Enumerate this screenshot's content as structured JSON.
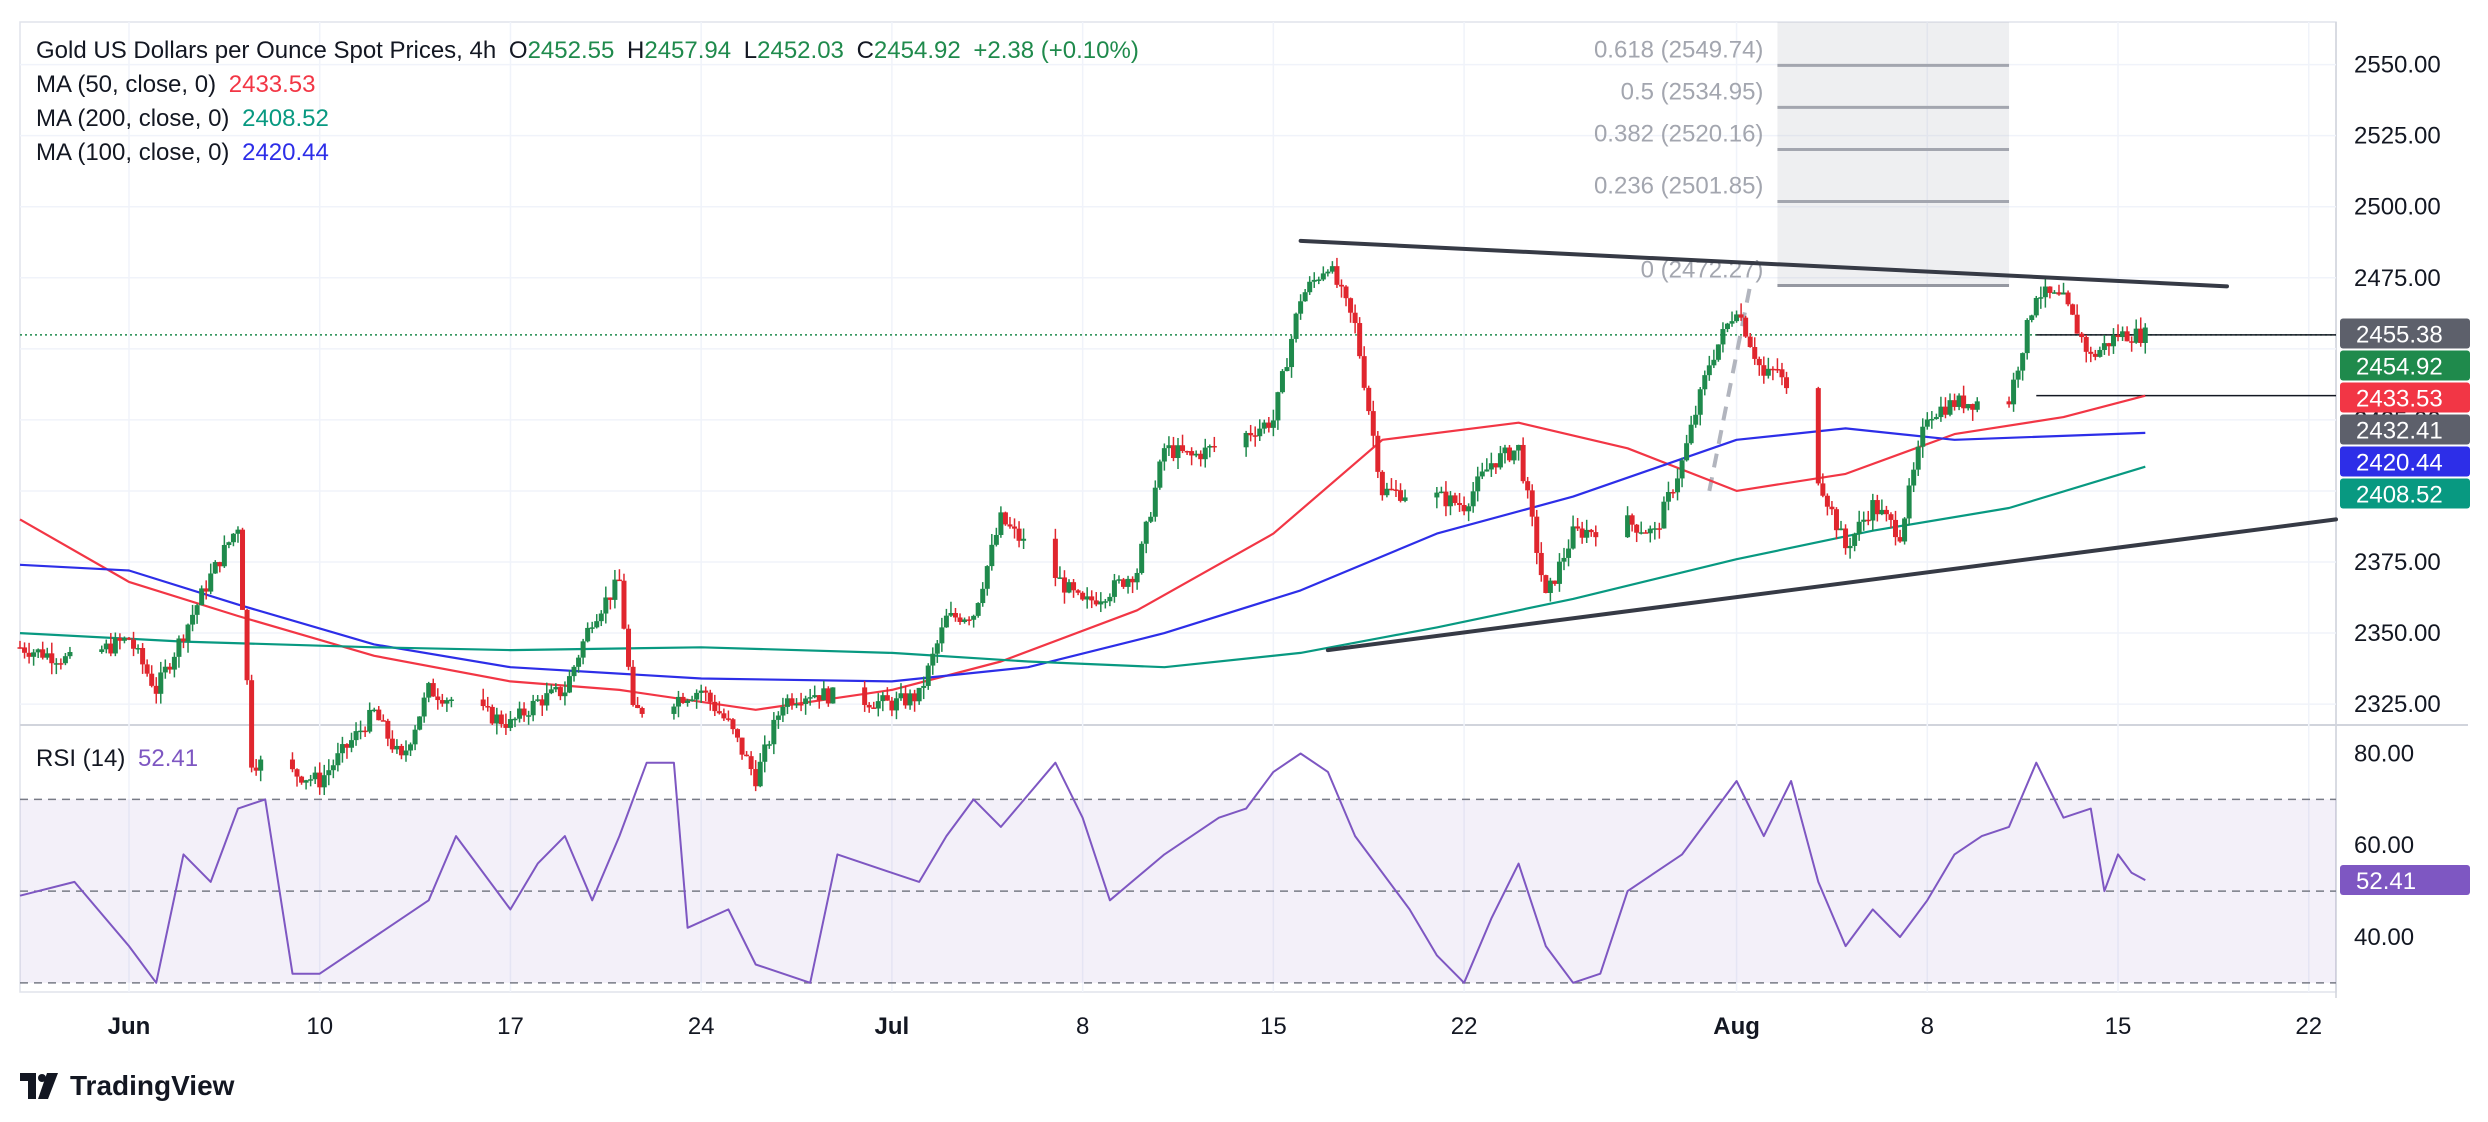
{
  "header": {
    "title": "Gold US Dollars per Ounce Spot Prices, 4h",
    "open_label": "O",
    "open": "2452.55",
    "high_label": "H",
    "high": "2457.94",
    "low_label": "L",
    "low": "2452.03",
    "close_label": "C",
    "close": "2454.92",
    "change": "+2.38 (+0.10%)"
  },
  "indicators": {
    "ma50": {
      "label": "MA (50, close, 0)",
      "value": "2433.53",
      "color": "#f23645"
    },
    "ma200": {
      "label": "MA (200, close, 0)",
      "value": "2408.52",
      "color": "#089981"
    },
    "ma100": {
      "label": "MA (100, close, 0)",
      "value": "2420.44",
      "color": "#2d2ee8"
    },
    "rsi": {
      "label": "RSI (14)",
      "value": "52.41",
      "color": "#7e57c2"
    }
  },
  "brand": "TradingView",
  "chart_data": [
    {
      "type": "candlestick",
      "title": "Gold US Dollars per Ounce Spot Prices, 4h",
      "x_tick_labels": [
        "Jun",
        "10",
        "17",
        "24",
        "Jul",
        "8",
        "15",
        "22",
        "Aug",
        "8",
        "15",
        "22"
      ],
      "x_tick_dates": [
        "2024-06-03",
        "2024-06-10",
        "2024-06-17",
        "2024-06-24",
        "2024-07-01",
        "2024-07-08",
        "2024-07-15",
        "2024-07-22",
        "2024-08-01",
        "2024-08-08",
        "2024-08-15",
        "2024-08-22"
      ],
      "xlim": [
        "2024-05-30",
        "2024-08-23"
      ],
      "y_ticks": [
        2325,
        2350,
        2375,
        2400,
        2425,
        2450,
        2475,
        2500,
        2525,
        2550
      ],
      "y_tick_labels": [
        "2325.00",
        "2350.00",
        "2375.00",
        "2400.00",
        "2425.00",
        "",
        "2475.00",
        "2500.00",
        "2525.00",
        "2550.00"
      ],
      "ylim": [
        2318,
        2565
      ],
      "grid": true,
      "price_path": [
        [
          "2024-05-30",
          2345
        ],
        [
          "2024-06-01",
          2340
        ],
        [
          "2024-06-03",
          2348
        ],
        [
          "2024-06-04",
          2330
        ],
        [
          "2024-06-05",
          2350
        ],
        [
          "2024-06-06",
          2370
        ],
        [
          "2024-06-07",
          2388
        ],
        [
          "2024-06-07T12",
          2305
        ],
        [
          "2024-06-10",
          2298
        ],
        [
          "2024-06-11",
          2310
        ],
        [
          "2024-06-12",
          2322
        ],
        [
          "2024-06-13",
          2305
        ],
        [
          "2024-06-14",
          2330
        ],
        [
          "2024-06-17",
          2318
        ],
        [
          "2024-06-18",
          2326
        ],
        [
          "2024-06-19",
          2330
        ],
        [
          "2024-06-20",
          2355
        ],
        [
          "2024-06-21",
          2368
        ],
        [
          "2024-06-21T12",
          2322
        ],
        [
          "2024-06-24",
          2330
        ],
        [
          "2024-06-25",
          2318
        ],
        [
          "2024-06-26",
          2299
        ],
        [
          "2024-06-27",
          2326
        ],
        [
          "2024-06-28",
          2329
        ],
        [
          "2024-07-01",
          2325
        ],
        [
          "2024-07-02",
          2328
        ],
        [
          "2024-07-03",
          2355
        ],
        [
          "2024-07-04",
          2357
        ],
        [
          "2024-07-05",
          2390
        ],
        [
          "2024-07-08",
          2360
        ],
        [
          "2024-07-09",
          2365
        ],
        [
          "2024-07-10",
          2372
        ],
        [
          "2024-07-11",
          2415
        ],
        [
          "2024-07-12",
          2412
        ],
        [
          "2024-07-14",
          2420
        ],
        [
          "2024-07-15",
          2425
        ],
        [
          "2024-07-16",
          2468
        ],
        [
          "2024-07-17",
          2480
        ],
        [
          "2024-07-18",
          2458
        ],
        [
          "2024-07-19",
          2400
        ],
        [
          "2024-07-21",
          2398
        ],
        [
          "2024-07-22",
          2395
        ],
        [
          "2024-07-23",
          2410
        ],
        [
          "2024-07-24",
          2415
        ],
        [
          "2024-07-25",
          2362
        ],
        [
          "2024-07-26",
          2385
        ],
        [
          "2024-07-28",
          2389
        ],
        [
          "2024-07-29",
          2385
        ],
        [
          "2024-07-30",
          2410
        ],
        [
          "2024-07-31",
          2445
        ],
        [
          "2024-08-01",
          2465
        ],
        [
          "2024-08-02",
          2440
        ],
        [
          "2024-08-02T12",
          2443
        ],
        [
          "2024-08-05",
          2380
        ],
        [
          "2024-08-06",
          2395
        ],
        [
          "2024-08-07",
          2385
        ],
        [
          "2024-08-08",
          2427
        ],
        [
          "2024-08-09",
          2431
        ],
        [
          "2024-08-11",
          2432
        ],
        [
          "2024-08-12",
          2470
        ],
        [
          "2024-08-13",
          2467
        ],
        [
          "2024-08-14",
          2447
        ],
        [
          "2024-08-15",
          2455
        ],
        [
          "2024-08-16",
          2454.92
        ]
      ],
      "moving_averages": [
        {
          "name": "MA (50, close, 0)",
          "color": "#f23645",
          "points": [
            [
              "2024-05-30",
              2390
            ],
            [
              "2024-06-03",
              2368
            ],
            [
              "2024-06-07",
              2356
            ],
            [
              "2024-06-12",
              2342
            ],
            [
              "2024-06-17",
              2333
            ],
            [
              "2024-06-21",
              2330
            ],
            [
              "2024-06-26",
              2323
            ],
            [
              "2024-07-01",
              2330
            ],
            [
              "2024-07-05",
              2340
            ],
            [
              "2024-07-10",
              2358
            ],
            [
              "2024-07-15",
              2385
            ],
            [
              "2024-07-19",
              2418
            ],
            [
              "2024-07-24",
              2424
            ],
            [
              "2024-07-28",
              2415
            ],
            [
              "2024-08-01",
              2400
            ],
            [
              "2024-08-05",
              2406
            ],
            [
              "2024-08-09",
              2420
            ],
            [
              "2024-08-13",
              2426
            ],
            [
              "2024-08-16",
              2433.53
            ]
          ]
        },
        {
          "name": "MA (100, close, 0)",
          "color": "#2d2ee8",
          "points": [
            [
              "2024-05-30",
              2374
            ],
            [
              "2024-06-03",
              2372
            ],
            [
              "2024-06-07",
              2360
            ],
            [
              "2024-06-12",
              2346
            ],
            [
              "2024-06-17",
              2338
            ],
            [
              "2024-06-24",
              2334
            ],
            [
              "2024-07-01",
              2333
            ],
            [
              "2024-07-06",
              2338
            ],
            [
              "2024-07-11",
              2350
            ],
            [
              "2024-07-16",
              2365
            ],
            [
              "2024-07-21",
              2385
            ],
            [
              "2024-07-26",
              2398
            ],
            [
              "2024-08-01",
              2418
            ],
            [
              "2024-08-05",
              2422
            ],
            [
              "2024-08-09",
              2418
            ],
            [
              "2024-08-16",
              2420.44
            ]
          ]
        },
        {
          "name": "MA (200, close, 0)",
          "color": "#089981",
          "points": [
            [
              "2024-05-30",
              2350
            ],
            [
              "2024-06-05",
              2347
            ],
            [
              "2024-06-12",
              2345
            ],
            [
              "2024-06-17",
              2344
            ],
            [
              "2024-06-24",
              2345
            ],
            [
              "2024-07-01",
              2343
            ],
            [
              "2024-07-06",
              2340
            ],
            [
              "2024-07-11",
              2338
            ],
            [
              "2024-07-16",
              2343
            ],
            [
              "2024-07-21",
              2352
            ],
            [
              "2024-07-26",
              2362
            ],
            [
              "2024-08-01",
              2376
            ],
            [
              "2024-08-06",
              2386
            ],
            [
              "2024-08-11",
              2394
            ],
            [
              "2024-08-16",
              2408.52
            ]
          ]
        }
      ],
      "trendlines": [
        {
          "name": "upper trendline",
          "points": [
            [
              "2024-07-16",
              2488
            ],
            [
              "2024-08-19",
              2472
            ]
          ]
        },
        {
          "name": "lower trendline",
          "points": [
            [
              "2024-07-17",
              2344
            ],
            [
              "2024-08-23",
              2390
            ]
          ]
        }
      ],
      "fibonacci": [
        {
          "label": "0.618 (2549.74)",
          "value": 2549.74
        },
        {
          "label": "0.5 (2534.95)",
          "value": 2534.95
        },
        {
          "label": "0.382 (2520.16)",
          "value": 2520.16
        },
        {
          "label": "0.236 (2501.85)",
          "value": 2501.85
        },
        {
          "label": "0 (2472.27)",
          "value": 2472.27
        }
      ],
      "horizontal_levels": [
        2454.92,
        2433.53
      ],
      "price_labels": [
        {
          "value": 2455.38,
          "text": "2455.38",
          "color": "#5d606b"
        },
        {
          "value": 2454.92,
          "text": "2454.92",
          "color": "#1f8a4c"
        },
        {
          "value": 2433.53,
          "text": "2433.53",
          "color": "#f23645"
        },
        {
          "value": 2432.41,
          "text": "2432.41",
          "color": "#5d606b"
        },
        {
          "value": 2420.44,
          "text": "2420.44",
          "color": "#2d2ee8"
        },
        {
          "value": 2408.52,
          "text": "2408.52",
          "color": "#089981"
        }
      ],
      "colors": {
        "up": "#1f8a4c",
        "down": "#e0262e"
      }
    },
    {
      "type": "line",
      "name": "RSI (14)",
      "color": "#7e57c2",
      "y_ticks": [
        40,
        60,
        80
      ],
      "y_tick_labels": [
        "40.00",
        "60.00",
        "80.00"
      ],
      "ylim": [
        28,
        86
      ],
      "band": [
        30,
        70
      ],
      "midline": 50,
      "last_value": 52.41,
      "points": [
        [
          "2024-05-30",
          49
        ],
        [
          "2024-06-01",
          52
        ],
        [
          "2024-06-03",
          38
        ],
        [
          "2024-06-04",
          30
        ],
        [
          "2024-06-05",
          58
        ],
        [
          "2024-06-06",
          52
        ],
        [
          "2024-06-07",
          68
        ],
        [
          "2024-06-08",
          70
        ],
        [
          "2024-06-09",
          32
        ],
        [
          "2024-06-10",
          32
        ],
        [
          "2024-06-12",
          40
        ],
        [
          "2024-06-14",
          48
        ],
        [
          "2024-06-15",
          62
        ],
        [
          "2024-06-17",
          46
        ],
        [
          "2024-06-18",
          56
        ],
        [
          "2024-06-19",
          62
        ],
        [
          "2024-06-20",
          48
        ],
        [
          "2024-06-21",
          62
        ],
        [
          "2024-06-22",
          78
        ],
        [
          "2024-06-23",
          78
        ],
        [
          "2024-06-23T12",
          42
        ],
        [
          "2024-06-25",
          46
        ],
        [
          "2024-06-26",
          34
        ],
        [
          "2024-06-28",
          30
        ],
        [
          "2024-06-29",
          58
        ],
        [
          "2024-07-01",
          54
        ],
        [
          "2024-07-02",
          52
        ],
        [
          "2024-07-03",
          62
        ],
        [
          "2024-07-04",
          70
        ],
        [
          "2024-07-05",
          64
        ],
        [
          "2024-07-07",
          78
        ],
        [
          "2024-07-08",
          66
        ],
        [
          "2024-07-09",
          48
        ],
        [
          "2024-07-11",
          58
        ],
        [
          "2024-07-13",
          66
        ],
        [
          "2024-07-14",
          68
        ],
        [
          "2024-07-15",
          76
        ],
        [
          "2024-07-16",
          80
        ],
        [
          "2024-07-17",
          76
        ],
        [
          "2024-07-18",
          62
        ],
        [
          "2024-07-20",
          46
        ],
        [
          "2024-07-21",
          36
        ],
        [
          "2024-07-22",
          30
        ],
        [
          "2024-07-23",
          44
        ],
        [
          "2024-07-24",
          56
        ],
        [
          "2024-07-25",
          38
        ],
        [
          "2024-07-26",
          30
        ],
        [
          "2024-07-27",
          32
        ],
        [
          "2024-07-28",
          50
        ],
        [
          "2024-07-30",
          58
        ],
        [
          "2024-08-01",
          74
        ],
        [
          "2024-08-02",
          62
        ],
        [
          "2024-08-03",
          74
        ],
        [
          "2024-08-04",
          52
        ],
        [
          "2024-08-05",
          38
        ],
        [
          "2024-08-06",
          46
        ],
        [
          "2024-08-07",
          40
        ],
        [
          "2024-08-08",
          48
        ],
        [
          "2024-08-09",
          58
        ],
        [
          "2024-08-10",
          62
        ],
        [
          "2024-08-11",
          64
        ],
        [
          "2024-08-12",
          78
        ],
        [
          "2024-08-13",
          66
        ],
        [
          "2024-08-14",
          68
        ],
        [
          "2024-08-14T12",
          50
        ],
        [
          "2024-08-15",
          58
        ],
        [
          "2024-08-15T12",
          54
        ],
        [
          "2024-08-16",
          52.41
        ]
      ]
    }
  ]
}
